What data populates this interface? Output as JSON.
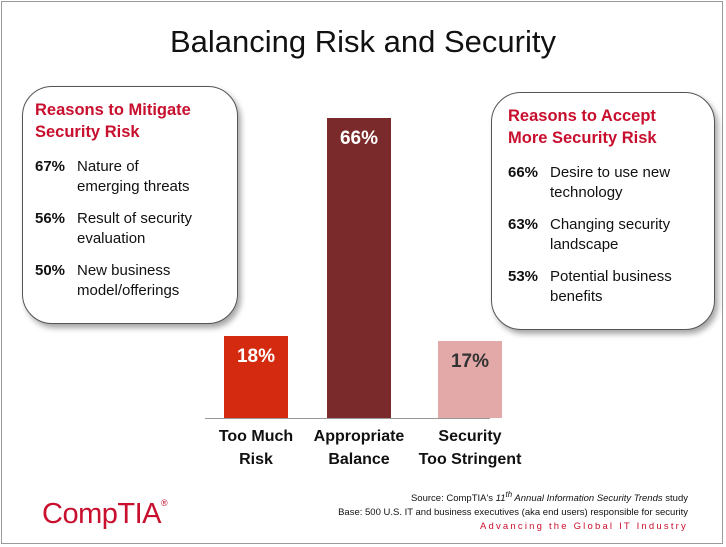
{
  "title": "Balancing Risk and Security",
  "left_box": {
    "heading_line1": "Reasons to Mitigate",
    "heading_line2": "Security Risk",
    "items": [
      {
        "pct": "67%",
        "line1": "Nature of",
        "line2": "emerging threats"
      },
      {
        "pct": "56%",
        "line1": "Result of security",
        "line2": "evaluation"
      },
      {
        "pct": "50%",
        "line1": "New business",
        "line2": "model/offerings"
      }
    ]
  },
  "right_box": {
    "heading_line1": "Reasons to Accept",
    "heading_line2": "More Security Risk",
    "items": [
      {
        "pct": "66%",
        "line1": "Desire to use new",
        "line2": "technology"
      },
      {
        "pct": "63%",
        "line1": "Changing security",
        "line2": "landscape"
      },
      {
        "pct": "53%",
        "line1": "Potential business",
        "line2": "benefits"
      }
    ]
  },
  "chart_data": {
    "type": "bar",
    "categories": [
      "Too Much Risk",
      "Appropriate Balance",
      "Security Too Stringent"
    ],
    "category_lines": [
      [
        "Too Much",
        "Risk"
      ],
      [
        "Appropriate",
        "Balance"
      ],
      [
        "Security",
        "Too Stringent"
      ]
    ],
    "values": [
      18,
      66,
      17
    ],
    "value_labels": [
      "18%",
      "66%",
      "17%"
    ],
    "colors": [
      "#d42a10",
      "#7a2a2a",
      "#e3a8a8"
    ],
    "value_label_colors": [
      "#ffffff",
      "#ffffff",
      "#333333"
    ],
    "ylim": [
      0,
      66
    ]
  },
  "footer": {
    "logo": "CompTIA",
    "source_prefix": "Source: CompTIA's ",
    "source_ordinal": "11",
    "source_ordinal_suffix": "th",
    "source_italic": " Annual Information Security Trends",
    "source_suffix": " study",
    "base": "Base: 500 U.S. IT and business executives (aka end users) responsible for security",
    "tagline": "Advancing the Global IT Industry"
  }
}
